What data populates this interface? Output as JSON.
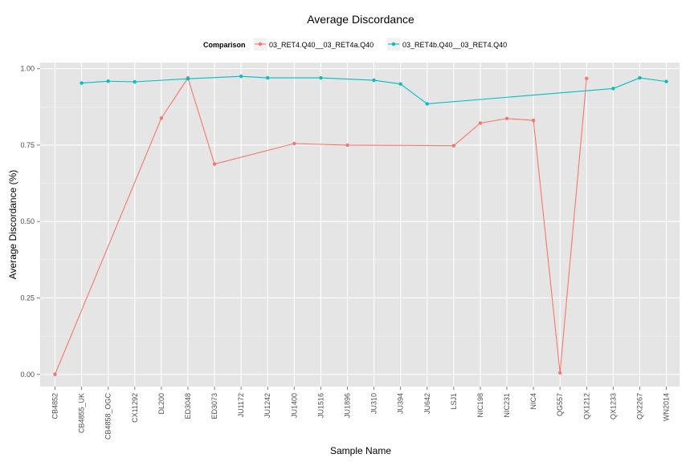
{
  "chart_data": {
    "type": "line",
    "title": "Average Discordance",
    "xlabel": "Sample Name",
    "ylabel": "Average Discordance (%)",
    "ylim": [
      -0.04,
      1.02
    ],
    "yticks": [
      0.0,
      0.25,
      0.5,
      0.75,
      1.0
    ],
    "ytick_labels": [
      "0.00",
      "0.25",
      "0.50",
      "0.75",
      "1.00"
    ],
    "grid": true,
    "legend_position": "top",
    "legend_title": "Comparison",
    "categories": [
      "CB4852",
      "CB4855_UK",
      "CB4858_OGC",
      "CX11292",
      "DL200",
      "ED3048",
      "ED3073",
      "JU1172",
      "JU1242",
      "JU1400",
      "JU1516",
      "JU1896",
      "JU310",
      "JU394",
      "JU642",
      "LSJ1",
      "NIC198",
      "NIC231",
      "NIC4",
      "QG557",
      "QX1212",
      "QX1233",
      "QX2267",
      "WN2014"
    ],
    "series": [
      {
        "name": "03_RET4.Q40__03_RET4a.Q40",
        "color": "#F8766D",
        "values": [
          0.0,
          null,
          null,
          null,
          0.838,
          0.97,
          0.688,
          null,
          null,
          0.755,
          null,
          0.75,
          null,
          null,
          null,
          0.748,
          0.822,
          0.837,
          0.831,
          0.005,
          0.968,
          null,
          null,
          null
        ]
      },
      {
        "name": "03_RET4b.Q40__03_RET4.Q40",
        "color": "#00BFC4",
        "values": [
          null,
          0.953,
          0.959,
          0.957,
          null,
          0.967,
          null,
          0.975,
          0.97,
          null,
          0.97,
          null,
          0.962,
          0.95,
          0.885,
          null,
          null,
          null,
          null,
          null,
          null,
          0.935,
          0.97,
          0.958
        ]
      }
    ]
  },
  "colors": {
    "panel_background": "#E5E5E5",
    "grid_major": "#FFFFFF",
    "grid_minor": "#F2F2F2"
  }
}
